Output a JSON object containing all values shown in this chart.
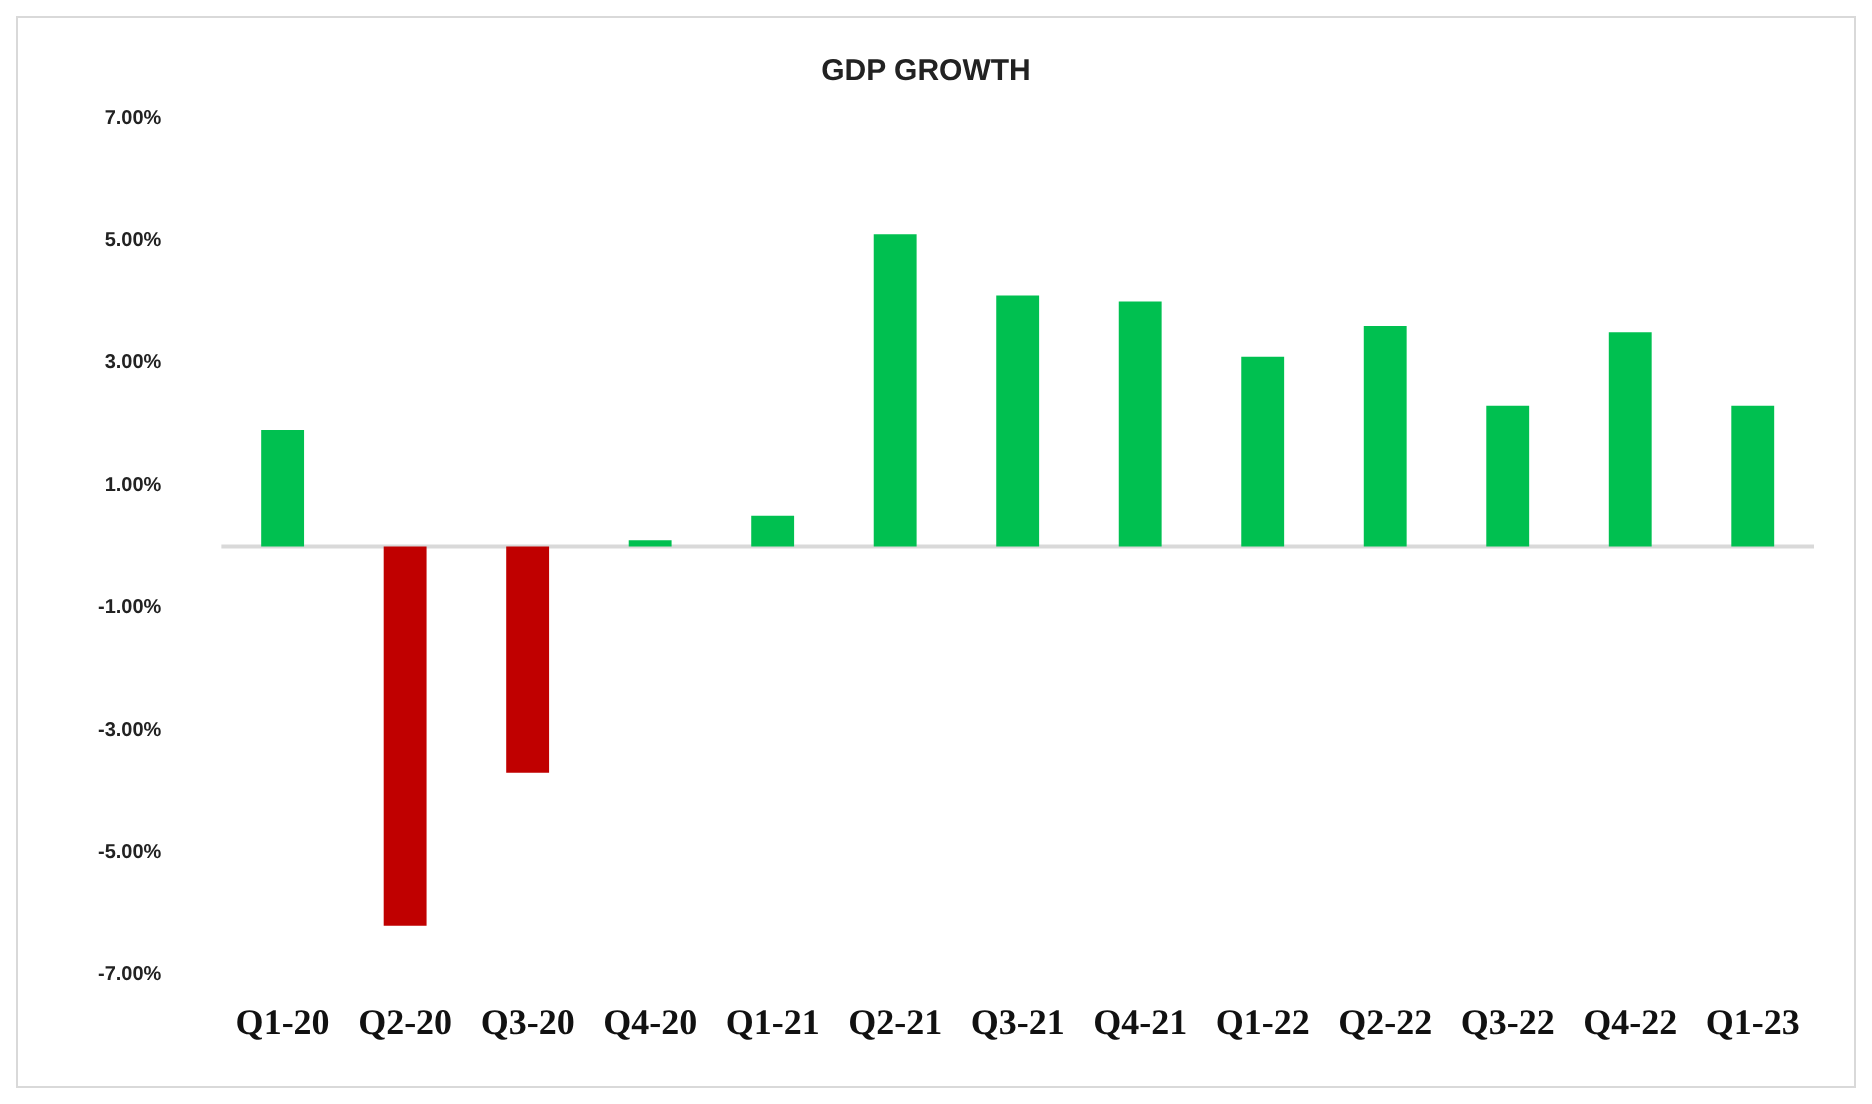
{
  "chart_data": {
    "type": "bar",
    "title": "GDP GROWTH",
    "categories": [
      "Q1-20",
      "Q2-20",
      "Q3-20",
      "Q4-20",
      "Q1-21",
      "Q2-21",
      "Q3-21",
      "Q4-21",
      "Q1-22",
      "Q2-22",
      "Q3-22",
      "Q4-22",
      "Q1-23"
    ],
    "values": [
      1.9,
      -6.2,
      -3.7,
      0.1,
      0.5,
      5.1,
      4.1,
      4.0,
      3.1,
      3.6,
      2.3,
      3.5,
      2.3
    ],
    "colors": [
      "#00c050",
      "#c00000",
      "#c00000",
      "#00c050",
      "#00c050",
      "#00c050",
      "#00c050",
      "#00c050",
      "#00c050",
      "#00c050",
      "#00c050",
      "#00c050",
      "#00c050"
    ],
    "ylim": [
      -7,
      7
    ],
    "yticks": [
      {
        "value": -7,
        "label": "-7.00%"
      },
      {
        "value": -5,
        "label": "-5.00%"
      },
      {
        "value": -3,
        "label": "-3.00%"
      },
      {
        "value": -1,
        "label": "-1.00%"
      },
      {
        "value": 1,
        "label": "1.00%"
      },
      {
        "value": 3,
        "label": "3.00%"
      },
      {
        "value": 5,
        "label": "5.00%"
      },
      {
        "value": 7,
        "label": "7.00%"
      }
    ],
    "grid": false,
    "legend": false
  }
}
